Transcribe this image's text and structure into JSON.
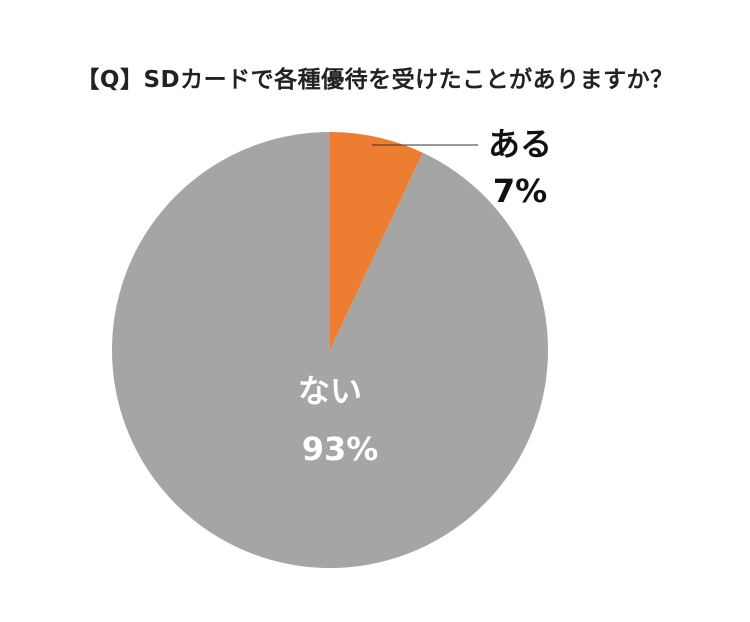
{
  "chart_data": {
    "type": "pie",
    "title": "【Q】SDカードで各種優待を受けたことがありますか？",
    "slices": [
      {
        "label": "ある",
        "value": 7,
        "value_label": "7%",
        "color": "#ed7d31"
      },
      {
        "label": "ない",
        "value": 93,
        "value_label": "93%",
        "color": "#a5a5a5"
      }
    ],
    "start_angle_deg": 0,
    "direction": "clockwise",
    "legend": "none"
  }
}
